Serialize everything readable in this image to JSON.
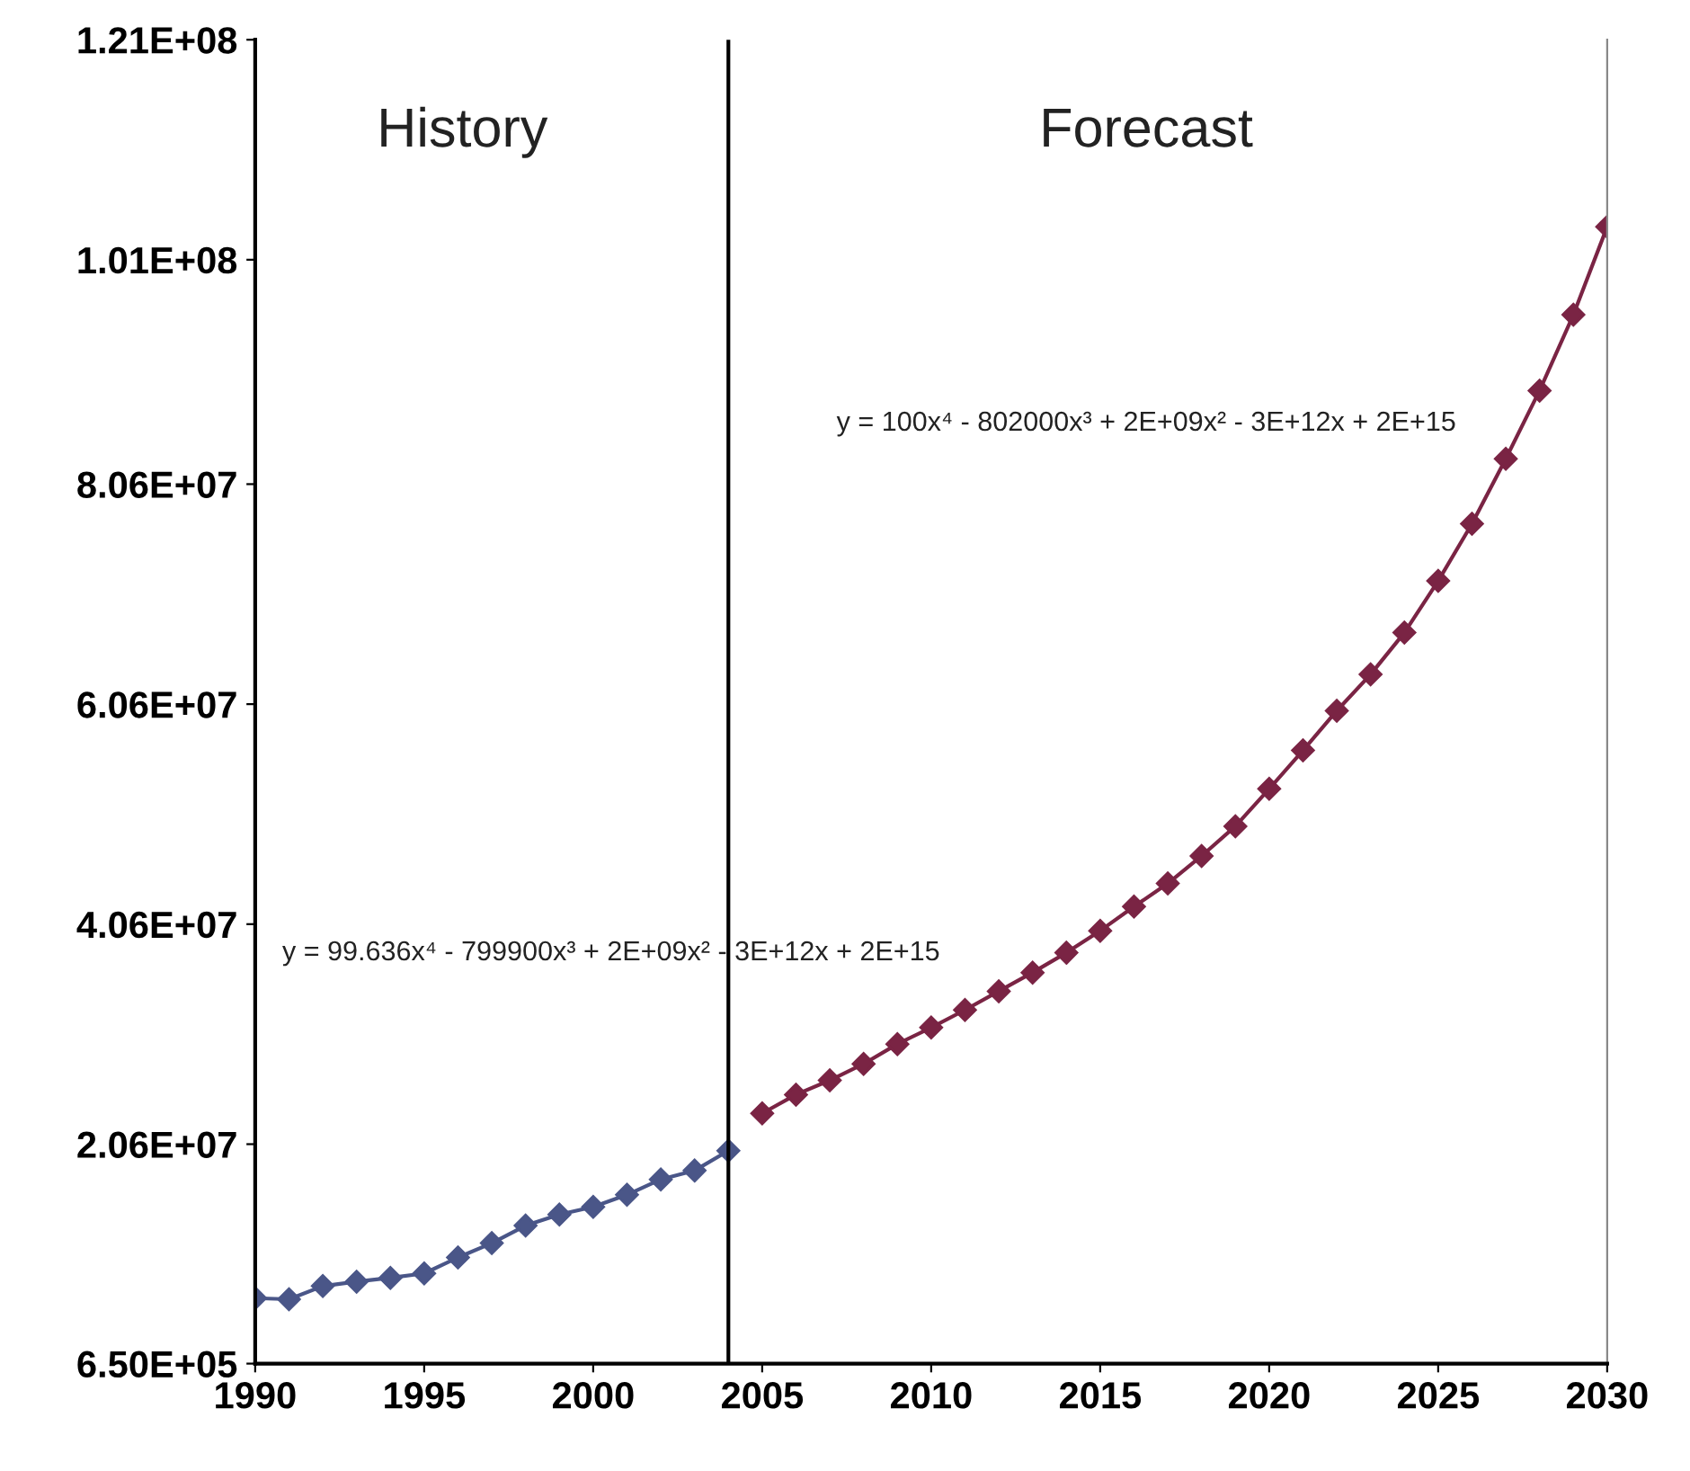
{
  "chart_data": {
    "type": "line",
    "marker": "diamond",
    "line_style": "solid",
    "grid": false,
    "legend": false,
    "xlim": [
      1990,
      2030
    ],
    "xticks": [
      1990,
      1995,
      2000,
      2005,
      2010,
      2015,
      2020,
      2025,
      2030
    ],
    "ylim": [
      650000,
      121000000
    ],
    "yticks": [
      {
        "value": 650000,
        "label": "6.50E+05"
      },
      {
        "value": 20600000,
        "label": "2.06E+07"
      },
      {
        "value": 40600000,
        "label": "4.06E+07"
      },
      {
        "value": 60600000,
        "label": "6.06E+07"
      },
      {
        "value": 80600000,
        "label": "8.06E+07"
      },
      {
        "value": 101000000,
        "label": "1.01E+08"
      },
      {
        "value": 121000000,
        "label": "1.21E+08"
      }
    ],
    "series": [
      {
        "color": "#4a5688",
        "x": [
          1990,
          1991,
          1992,
          1993,
          1994,
          1995,
          1996,
          1997,
          1998,
          1999,
          2000,
          2001,
          2002,
          2003,
          2004
        ],
        "values": [
          6600000,
          6500000,
          7700000,
          8100000,
          8450000,
          8850000,
          10300000,
          11600000,
          13200000,
          14200000,
          14900000,
          16000000,
          17400000,
          18200000,
          20000000
        ]
      },
      {
        "color": "#7a2444",
        "x": [
          2005,
          2006,
          2007,
          2008,
          2009,
          2010,
          2011,
          2012,
          2013,
          2014,
          2015,
          2016,
          2017,
          2018,
          2019,
          2020,
          2021,
          2022,
          2023,
          2024,
          2025,
          2026,
          2027,
          2028,
          2029,
          2030
        ],
        "values": [
          23400000,
          25100000,
          26400000,
          27900000,
          29700000,
          31200000,
          32800000,
          34500000,
          36200000,
          38000000,
          40000000,
          42200000,
          44300000,
          46800000,
          49500000,
          52900000,
          56400000,
          60000000,
          63300000,
          67100000,
          71800000,
          77000000,
          82900000,
          89100000,
          96000000,
          104000000
        ]
      }
    ],
    "ref_lines": [
      {
        "axis": "x",
        "value": 2004,
        "color": "#000000"
      }
    ],
    "annotations": [
      "History",
      "Forecast",
      "y = 99.636x⁴ - 799900x³ + 2E+09x² - 3E+12x + 2E+15",
      "y = 100x⁴ - 802000x³ + 2E+09x² - 3E+12x + 2E+15"
    ]
  }
}
